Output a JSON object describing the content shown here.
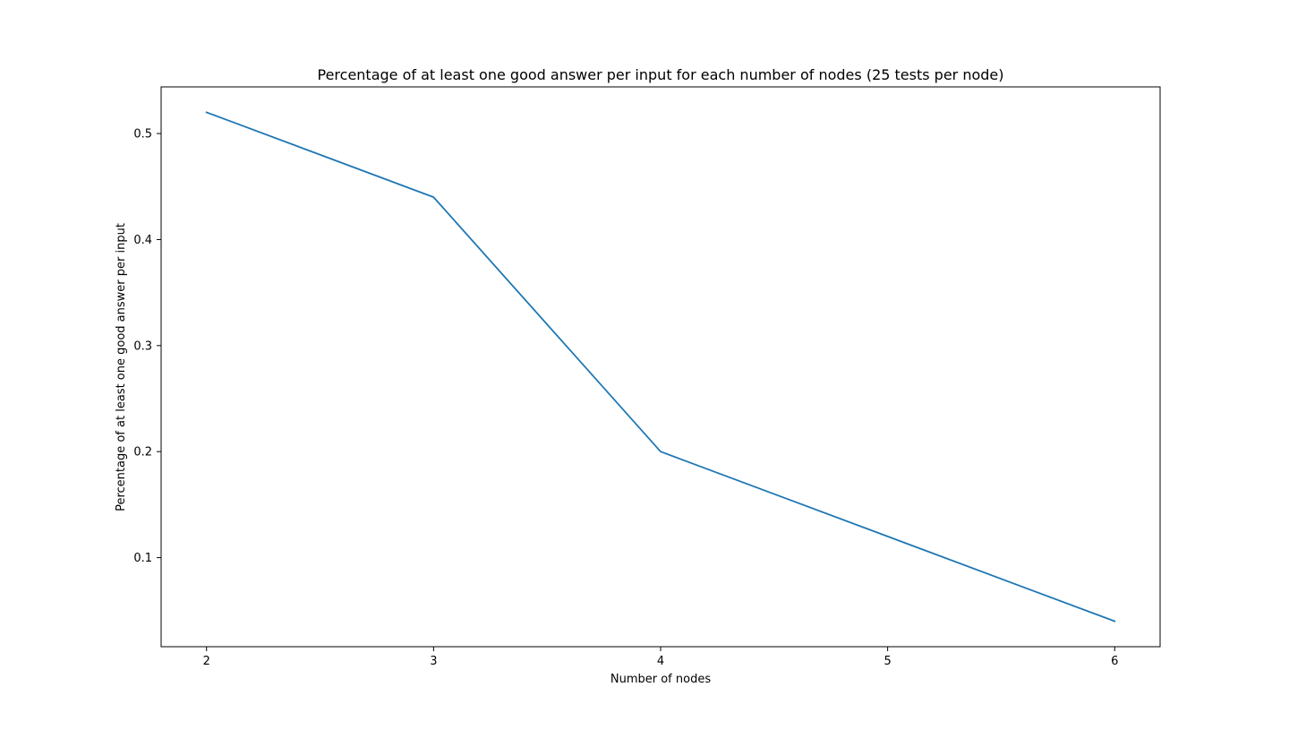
{
  "chart_data": {
    "type": "line",
    "title": "Percentage of at least one good answer per input for each number of nodes (25 tests per node)",
    "xlabel": "Number of nodes",
    "ylabel": "Percentage of at least one good answer per input",
    "x": [
      2,
      3,
      4,
      5,
      6
    ],
    "series": [
      {
        "values": [
          0.52,
          0.44,
          0.2,
          0.12,
          0.04
        ],
        "color": "#1f77b4"
      }
    ],
    "xticks": [
      2,
      3,
      4,
      5,
      6
    ],
    "yticks": [
      0.1,
      0.2,
      0.3,
      0.4,
      0.5
    ],
    "ytick_labels": [
      "0.1",
      "0.2",
      "0.3",
      "0.4",
      "0.5"
    ],
    "xlim": [
      1.8,
      6.2
    ],
    "ylim": [
      0.016,
      0.544
    ],
    "grid": false,
    "legend": "none"
  }
}
